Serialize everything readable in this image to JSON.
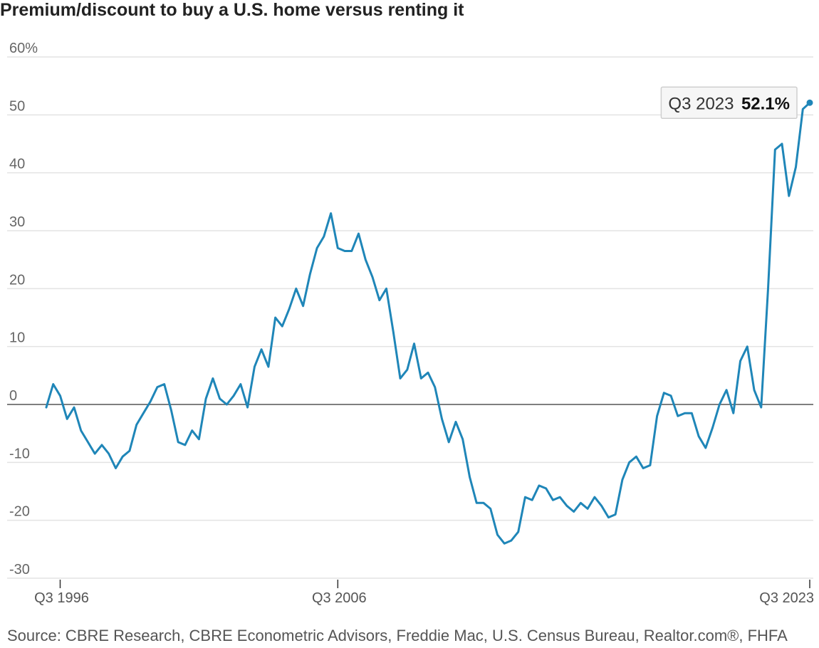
{
  "colors": {
    "line": "#1f86b8",
    "grid": "#e3e3e3",
    "zero": "#555555",
    "background": "#ffffff"
  },
  "chart_data": {
    "type": "line",
    "title": "Premium/discount to buy a U.S. home versus renting it",
    "ylim": [
      -30,
      60
    ],
    "yticks": [
      60,
      50,
      40,
      30,
      20,
      10,
      0,
      -10,
      -20,
      -30
    ],
    "ytick_labels": [
      "60%",
      "50",
      "40",
      "30",
      "20",
      "10",
      "0",
      "-10",
      "-20",
      "-30"
    ],
    "x_tick_labels": [
      {
        "label": "Q3 1996",
        "index": 2
      },
      {
        "label": "Q3 2006",
        "index": 42
      },
      {
        "label": "Q3 2023",
        "index": 110
      }
    ],
    "xlabel": "",
    "ylabel": "",
    "grid": true,
    "series": [
      {
        "name": "Premium/discount",
        "unit": "%",
        "values": [
          -0.5,
          3.5,
          1.5,
          -2.5,
          -0.5,
          -4.5,
          -6.5,
          -8.5,
          -7.0,
          -8.5,
          -11.0,
          -9.0,
          -8.0,
          -3.5,
          -1.5,
          0.5,
          3.0,
          3.5,
          -1.0,
          -6.5,
          -7.0,
          -4.5,
          -6.0,
          1.0,
          4.5,
          1.0,
          0.0,
          1.5,
          3.5,
          -0.5,
          6.5,
          9.5,
          6.5,
          15.0,
          13.5,
          16.5,
          20.0,
          17.0,
          22.5,
          27.0,
          29.0,
          33.0,
          27.0,
          26.5,
          26.5,
          29.5,
          25.0,
          22.0,
          18.0,
          20.0,
          12.5,
          4.5,
          6.0,
          10.5,
          4.5,
          5.5,
          3.0,
          -2.5,
          -6.5,
          -3.0,
          -6.0,
          -12.5,
          -17.0,
          -17.0,
          -18.0,
          -22.5,
          -24.0,
          -23.5,
          -22.0,
          -16.0,
          -16.5,
          -14.0,
          -14.5,
          -16.5,
          -16.0,
          -17.5,
          -18.5,
          -17.0,
          -18.0,
          -16.0,
          -17.5,
          -19.5,
          -19.0,
          -13.0,
          -10.0,
          -9.0,
          -11.0,
          -10.5,
          -2.0,
          2.0,
          1.5,
          -2.0,
          -1.5,
          -1.5,
          -5.5,
          -7.5,
          -4.0,
          0.0,
          2.5,
          -1.5,
          7.5,
          10.0,
          2.5,
          -0.5,
          20.0,
          44.0,
          45.0,
          36.0,
          41.0,
          51.0,
          52.1
        ]
      }
    ],
    "annotation": {
      "label": "Q3 2023",
      "value": "52.1%"
    }
  },
  "source": "Source: CBRE Research, CBRE Econometric Advisors, Freddie Mac, U.S. Census Bureau, Realtor.com®, FHFA"
}
